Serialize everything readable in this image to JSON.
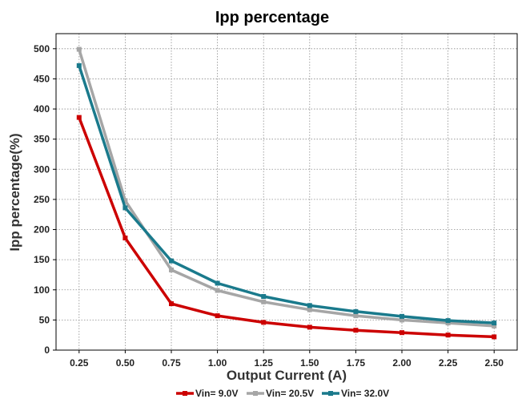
{
  "chart_data": {
    "type": "line",
    "title": "Ipp percentage",
    "xlabel": "Output Current (A)",
    "ylabel": "Ipp percentage(%)",
    "x": [
      0.25,
      0.5,
      0.75,
      1.0,
      1.25,
      1.5,
      1.75,
      2.0,
      2.25,
      2.5
    ],
    "x_tick_labels": [
      "0.25",
      "0.50",
      "0.75",
      "1.00",
      "1.25",
      "1.50",
      "1.75",
      "2.00",
      "2.25",
      "2.50"
    ],
    "y_ticks": [
      0,
      50,
      100,
      150,
      200,
      250,
      300,
      350,
      400,
      450,
      500
    ],
    "y_tick_labels": [
      "0",
      "50",
      "100",
      "150",
      "200",
      "250",
      "300",
      "350",
      "400",
      "450",
      "500"
    ],
    "xlim": [
      0.125,
      2.625
    ],
    "ylim": [
      0,
      525
    ],
    "grid": true,
    "legend_position": "bottom",
    "series": [
      {
        "name": "Vin= 9.0V",
        "color": "#cc0000",
        "values": [
          386,
          186,
          77,
          57,
          46,
          38,
          33,
          29,
          25,
          22
        ]
      },
      {
        "name": "Vin= 20.5V",
        "color": "#a6a6a6",
        "values": [
          499,
          248,
          133,
          99,
          80,
          67,
          57,
          50,
          45,
          40
        ]
      },
      {
        "name": "Vin= 32.0V",
        "color": "#1a7a8c",
        "values": [
          472,
          236,
          148,
          111,
          89,
          74,
          64,
          56,
          49,
          45
        ]
      }
    ]
  }
}
